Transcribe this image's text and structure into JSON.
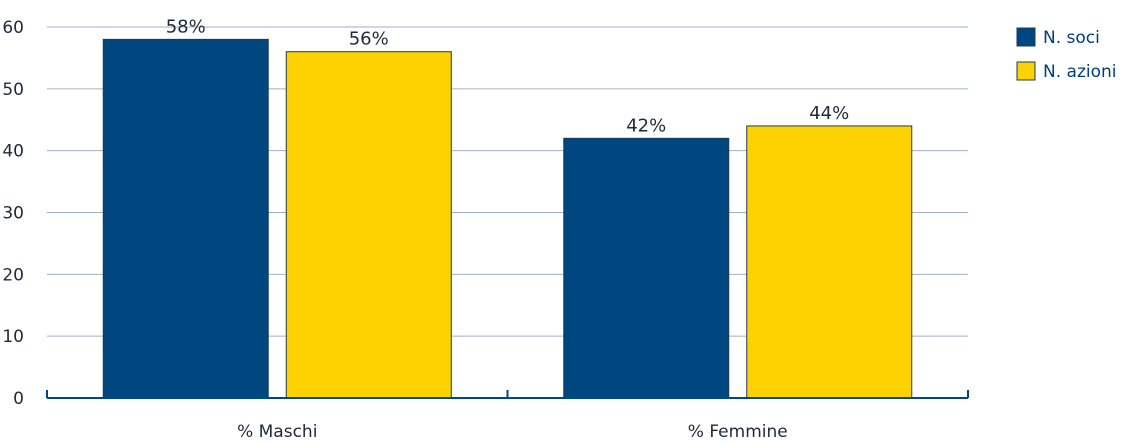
{
  "chart_data": {
    "type": "bar",
    "categories": [
      "% Maschi",
      "% Femmine"
    ],
    "series": [
      {
        "name": "N. soci",
        "values": [
          58,
          42
        ],
        "labels": [
          "58%",
          "42%"
        ],
        "color": "#00467f"
      },
      {
        "name": "N. azioni",
        "values": [
          56,
          44
        ],
        "labels": [
          "56%",
          "44%"
        ],
        "color": "#fed100"
      }
    ],
    "ylim": [
      0,
      60
    ],
    "yticks": [
      0,
      10,
      20,
      30,
      40,
      50,
      60
    ],
    "grid": true,
    "legend": "top-right",
    "colors": {
      "grid": "#9fb0c4",
      "axis": "#00467f",
      "bar_outline": "#1e3a5a"
    }
  }
}
